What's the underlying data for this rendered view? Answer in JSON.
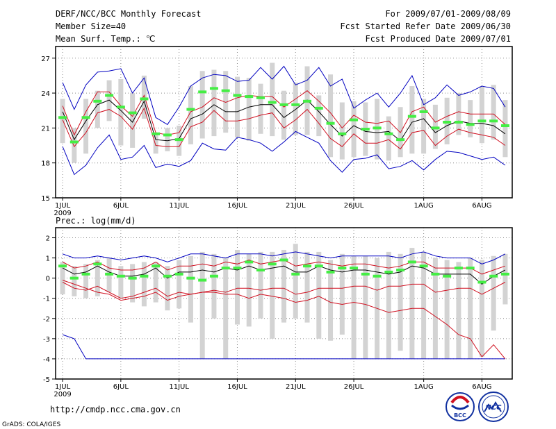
{
  "header": {
    "title": "DERF/NCC/BCC Monthly Forecast",
    "member_size": "Member Size=40",
    "variable": "Mean Surf. Temp.: ℃",
    "period": "For 2009/07/01-2009/08/09",
    "start_date": "Fcst Started Refer Date 2009/06/30",
    "produced_date": "Fcst Produced Date 2009/07/01"
  },
  "footer": {
    "url": "http://cmdp.ncc.cma.gov.cn",
    "credit": "GrADS: COLA/IGES",
    "logo_bcc": "BCC",
    "logo_ncc": "NCC"
  },
  "colors": {
    "box": "#d3d3d3",
    "obs": "#44ee44",
    "mean": "#000000",
    "spread": "#d01020",
    "extreme": "#0000c0",
    "frame": "#000000",
    "grid": "#888888"
  },
  "chart_data": [
    {
      "type": "line",
      "title": "Mean Surf. Temp.: ℃",
      "ylim": [
        15,
        28
      ],
      "yticks": [
        15,
        18,
        21,
        24,
        27
      ],
      "xlim": [
        -0.6,
        38.6
      ],
      "xticks": [
        {
          "day": 0,
          "label": "1JUL"
        },
        {
          "day": 5,
          "label": "6JUL"
        },
        {
          "day": 10,
          "label": "11JUL"
        },
        {
          "day": 15,
          "label": "16JUL"
        },
        {
          "day": 20,
          "label": "21JUL"
        },
        {
          "day": 25,
          "label": "26JUL"
        },
        {
          "day": 31,
          "label": "1AUG"
        },
        {
          "day": 36,
          "label": "6AUG"
        }
      ],
      "year_label": "2009",
      "box_low": [
        19.7,
        18.0,
        18.8,
        21.0,
        21.6,
        19.5,
        19.3,
        21.8,
        18.8,
        19.0,
        18.6,
        19.6,
        20.1,
        20.3,
        20.6,
        20.2,
        19.9,
        20.5,
        20.3,
        20.0,
        20.4,
        20.4,
        20.3,
        18.5,
        18.3,
        18.5,
        18.6,
        18.3,
        18.2,
        18.5,
        18.8,
        18.8,
        19.2,
        19.6,
        20.4,
        20.2,
        19.7,
        20.0,
        18.5
      ],
      "box_high": [
        23.5,
        21.0,
        23.5,
        24.2,
        25.1,
        25.2,
        24.0,
        25.5,
        20.5,
        21.0,
        21.2,
        24.6,
        25.9,
        26.0,
        25.9,
        25.4,
        25.3,
        24.8,
        26.6,
        24.2,
        24.9,
        26.3,
        23.8,
        25.6,
        23.2,
        23.3,
        23.2,
        23.5,
        22.0,
        22.8,
        24.6,
        23.5,
        23.0,
        23.6,
        24.0,
        23.4,
        24.6,
        24.7,
        23.4
      ],
      "obs": [
        21.9,
        19.8,
        21.9,
        23.3,
        23.8,
        22.8,
        22.3,
        23.5,
        20.5,
        20.4,
        20.0,
        22.6,
        24.1,
        24.4,
        24.2,
        23.8,
        23.7,
        23.6,
        23.2,
        23.0,
        23.0,
        23.3,
        22.7,
        21.4,
        20.5,
        21.7,
        20.9,
        21.0,
        20.5,
        20.0,
        22.0,
        22.4,
        21.0,
        21.5,
        21.5,
        21.3,
        21.6,
        21.6,
        21.2
      ],
      "mean": [
        22.4,
        20.0,
        21.6,
        23.0,
        23.4,
        22.5,
        21.5,
        23.3,
        20.0,
        19.9,
        20.1,
        21.8,
        22.2,
        23.0,
        22.4,
        22.4,
        22.8,
        23.0,
        23.0,
        21.9,
        22.6,
        23.4,
        22.4,
        21.3,
        20.3,
        21.2,
        20.7,
        20.6,
        20.7,
        19.9,
        21.5,
        21.8,
        20.6,
        21.2,
        21.6,
        21.4,
        21.4,
        21.2,
        20.5
      ],
      "upper": [
        22.9,
        20.4,
        22.4,
        24.1,
        24.1,
        22.9,
        22.0,
        23.8,
        20.6,
        20.4,
        20.6,
        22.4,
        22.8,
        23.6,
        23.2,
        23.6,
        23.8,
        23.7,
        23.7,
        22.8,
        23.5,
        24.2,
        23.3,
        22.3,
        21.0,
        22.1,
        21.5,
        21.4,
        21.6,
        20.6,
        22.4,
        22.8,
        21.5,
        22.0,
        22.4,
        22.2,
        22.2,
        22.2,
        21.3
      ],
      "lower": [
        21.7,
        19.4,
        20.6,
        22.3,
        22.6,
        22.0,
        20.9,
        22.7,
        19.5,
        19.4,
        19.4,
        21.1,
        21.5,
        22.5,
        21.6,
        21.6,
        21.8,
        22.1,
        22.3,
        21.0,
        21.7,
        22.6,
        21.4,
        20.1,
        19.4,
        20.5,
        19.7,
        19.7,
        20.0,
        19.2,
        20.6,
        20.8,
        19.5,
        20.3,
        20.9,
        20.6,
        20.4,
        20.2,
        19.5
      ],
      "max": [
        24.9,
        22.6,
        24.7,
        25.8,
        25.9,
        26.1,
        24.0,
        25.3,
        21.9,
        21.3,
        22.8,
        24.6,
        25.3,
        25.6,
        25.5,
        25.0,
        25.1,
        26.2,
        25.2,
        26.3,
        24.7,
        25.1,
        26.2,
        24.6,
        25.2,
        22.7,
        23.4,
        24.0,
        22.8,
        24.0,
        25.5,
        23.0,
        23.6,
        24.7,
        23.8,
        24.1,
        24.6,
        24.4,
        22.8
      ],
      "min": [
        19.4,
        17.0,
        17.8,
        19.3,
        20.4,
        18.3,
        18.5,
        19.5,
        17.6,
        17.9,
        17.7,
        18.2,
        19.7,
        19.2,
        19.1,
        20.2,
        20.0,
        19.7,
        19.0,
        19.8,
        20.7,
        20.2,
        19.7,
        18.2,
        17.2,
        18.3,
        18.4,
        18.7,
        17.5,
        17.7,
        18.2,
        17.4,
        18.3,
        19.0,
        18.9,
        18.6,
        18.3,
        18.5,
        17.8
      ]
    },
    {
      "type": "line",
      "title": "Prec.: log(mm/d)",
      "ylim": [
        -5,
        2.5
      ],
      "yticks": [
        -5,
        -4,
        -3,
        -2,
        -1,
        0,
        1,
        2
      ],
      "xlim": [
        -0.6,
        38.6
      ],
      "xticks": [
        {
          "day": 0,
          "label": "1JUL"
        },
        {
          "day": 5,
          "label": "6JUL"
        },
        {
          "day": 10,
          "label": "11JUL"
        },
        {
          "day": 15,
          "label": "16JUL"
        },
        {
          "day": 20,
          "label": "21JUL"
        },
        {
          "day": 25,
          "label": "26JUL"
        },
        {
          "day": 31,
          "label": "1AUG"
        },
        {
          "day": 36,
          "label": "6AUG"
        }
      ],
      "year_label": "2009",
      "box_low": [
        -0.8,
        -0.9,
        -1.0,
        -0.9,
        -0.7,
        -1.0,
        -1.2,
        -1.4,
        -1.2,
        -1.6,
        -1.5,
        -2.2,
        -4.0,
        -2.0,
        -4.0,
        -2.3,
        -2.4,
        -2.0,
        -3.0,
        -2.2,
        -2.0,
        -2.2,
        -3.0,
        -3.1,
        -2.8,
        -4.0,
        -4.0,
        -4.0,
        -4.0,
        -3.6,
        -4.0,
        -4.0,
        -4.0,
        -4.0,
        -4.0,
        -4.0,
        -3.9,
        -2.6,
        -1.3
      ],
      "box_high": [
        0.8,
        0.6,
        0.7,
        0.9,
        1.0,
        0.6,
        0.7,
        0.8,
        0.8,
        0.6,
        0.9,
        1.1,
        1.3,
        1.2,
        1.0,
        1.4,
        1.2,
        1.3,
        1.3,
        1.4,
        1.7,
        1.3,
        1.3,
        0.9,
        1.2,
        1.1,
        1.1,
        1.0,
        1.3,
        1.2,
        1.5,
        1.3,
        1.0,
        0.9,
        0.8,
        1.0,
        0.9,
        1.1,
        1.2
      ],
      "obs": [
        0.6,
        0.0,
        0.2,
        0.7,
        0.2,
        0.1,
        0.0,
        0.1,
        0.6,
        0.1,
        0.2,
        0.0,
        -0.1,
        0.1,
        0.5,
        0.5,
        0.8,
        0.4,
        0.7,
        0.9,
        0.2,
        0.6,
        0.6,
        0.3,
        0.5,
        0.5,
        0.2,
        0.1,
        0.3,
        0.4,
        0.8,
        0.6,
        0.2,
        0.1,
        0.5,
        0.5,
        -0.2,
        0.1,
        0.2
      ],
      "mean": [
        0.5,
        0.2,
        0.3,
        0.6,
        0.3,
        0.1,
        0.1,
        0.2,
        0.5,
        0.0,
        0.3,
        0.3,
        0.4,
        0.3,
        0.5,
        0.4,
        0.6,
        0.4,
        0.5,
        0.6,
        0.3,
        0.3,
        0.6,
        0.4,
        0.3,
        0.4,
        0.4,
        0.3,
        0.2,
        0.3,
        0.6,
        0.5,
        0.2,
        0.2,
        0.2,
        0.2,
        -0.3,
        0.1,
        0.4
      ],
      "upper": [
        0.8,
        0.5,
        0.6,
        0.8,
        0.5,
        0.4,
        0.4,
        0.5,
        0.8,
        0.4,
        0.6,
        0.6,
        0.7,
        0.6,
        0.8,
        0.7,
        0.9,
        0.7,
        0.8,
        0.9,
        0.6,
        0.7,
        0.8,
        0.7,
        0.6,
        0.7,
        0.7,
        0.6,
        0.5,
        0.6,
        0.8,
        0.8,
        0.5,
        0.5,
        0.5,
        0.5,
        0.2,
        0.4,
        0.6
      ],
      "lower": [
        -0.2,
        -0.5,
        -0.6,
        -0.4,
        -0.7,
        -1.0,
        -0.9,
        -0.7,
        -0.5,
        -0.9,
        -0.7,
        -0.8,
        -0.7,
        -0.6,
        -0.7,
        -0.5,
        -0.5,
        -0.6,
        -0.5,
        -0.5,
        -0.8,
        -0.7,
        -0.5,
        -0.5,
        -0.5,
        -0.4,
        -0.4,
        -0.6,
        -0.4,
        -0.4,
        -0.3,
        -0.3,
        -0.7,
        -0.6,
        -0.5,
        -0.5,
        -0.8,
        -0.5,
        -0.2
      ],
      "max": [
        1.2,
        1.0,
        1.0,
        1.1,
        1.0,
        0.9,
        1.0,
        1.1,
        1.0,
        0.8,
        1.0,
        1.2,
        1.2,
        1.1,
        1.0,
        1.2,
        1.2,
        1.2,
        1.1,
        1.2,
        1.3,
        1.2,
        1.1,
        1.0,
        1.1,
        1.1,
        1.1,
        1.1,
        1.1,
        1.0,
        1.2,
        1.3,
        1.1,
        1.0,
        1.0,
        1.0,
        0.7,
        0.9,
        1.2
      ],
      "min": [
        -2.8,
        -3.0,
        -4.0,
        -4.0,
        -4.0,
        -4.0,
        -4.0,
        -4.0,
        -4.0,
        -4.0,
        -4.0,
        -4.0,
        -4.0,
        -4.0,
        -4.0,
        -4.0,
        -4.0,
        -4.0,
        -4.0,
        -4.0,
        -4.0,
        -4.0,
        -4.0,
        -4.0,
        -4.0,
        -4.0,
        -4.0,
        -4.0,
        -4.0,
        -4.0,
        -4.0,
        -4.0,
        -4.0,
        -4.0,
        -4.0,
        -4.0,
        -4.0,
        -4.0,
        -4.0
      ],
      "low": [
        -0.1,
        -0.3,
        -0.5,
        -0.7,
        -0.8,
        -1.1,
        -1.0,
        -0.9,
        -0.7,
        -1.1,
        -0.9,
        -0.8,
        -0.7,
        -0.7,
        -0.8,
        -0.8,
        -1.0,
        -0.8,
        -0.9,
        -1.0,
        -1.2,
        -1.1,
        -0.9,
        -1.2,
        -1.3,
        -1.2,
        -1.3,
        -1.5,
        -1.7,
        -1.6,
        -1.5,
        -1.5,
        -1.9,
        -2.3,
        -2.8,
        -3.0,
        -3.9,
        -3.3,
        -4.0
      ]
    }
  ]
}
